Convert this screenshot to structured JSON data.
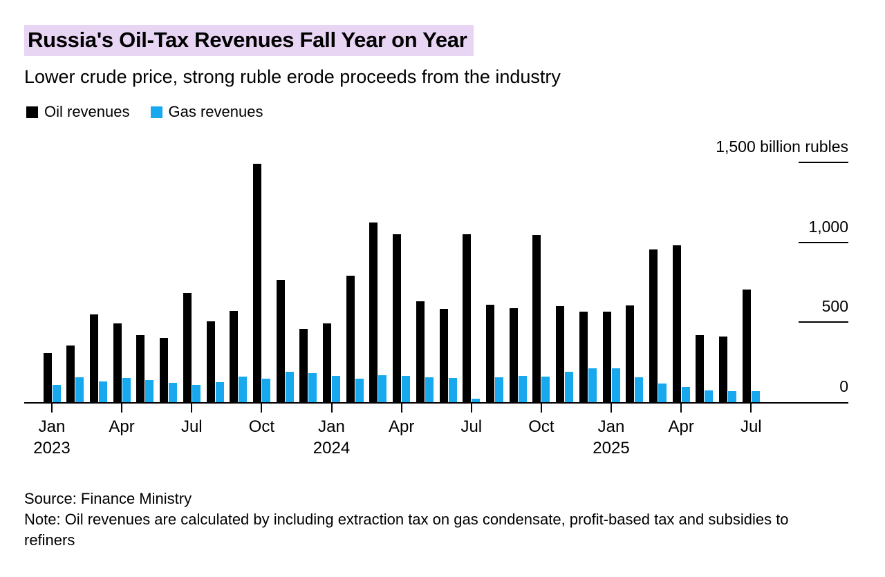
{
  "chart_data": {
    "type": "bar",
    "title": "Russia's Oil-Tax Revenues Fall Year on Year",
    "subtitle": "Lower crude price, strong ruble erode proceeds from the industry",
    "unit_label": "billion rubles",
    "legend_position": "top-left",
    "grid": "right-side tick dashes only",
    "categories": [
      "Jan 2023",
      "Feb 2023",
      "Mar 2023",
      "Apr 2023",
      "May 2023",
      "Jun 2023",
      "Jul 2023",
      "Aug 2023",
      "Sep 2023",
      "Oct 2023",
      "Nov 2023",
      "Dec 2023",
      "Jan 2024",
      "Feb 2024",
      "Mar 2024",
      "Apr 2024",
      "May 2024",
      "Jun 2024",
      "Jul 2024",
      "Aug 2024",
      "Sep 2024",
      "Oct 2024",
      "Nov 2024",
      "Dec 2024",
      "Jan 2025",
      "Feb 2025",
      "Mar 2025",
      "Apr 2025",
      "May 2025",
      "Jun 2025",
      "Jul 2025"
    ],
    "series": [
      {
        "name": "Oil revenues",
        "color": "#000000",
        "values": [
          305,
          355,
          550,
          495,
          420,
          400,
          685,
          505,
          570,
          1490,
          765,
          460,
          495,
          790,
          1125,
          1050,
          630,
          585,
          1050,
          610,
          590,
          1045,
          600,
          565,
          565,
          605,
          955,
          980,
          420,
          410,
          705
        ]
      },
      {
        "name": "Gas revenues",
        "color": "#18a8ee",
        "values": [
          110,
          155,
          130,
          150,
          140,
          120,
          110,
          125,
          160,
          145,
          190,
          180,
          165,
          145,
          170,
          165,
          155,
          150,
          20,
          155,
          165,
          160,
          190,
          210,
          210,
          155,
          115,
          95,
          75,
          70,
          70
        ]
      }
    ],
    "x_ticks": [
      {
        "index": 0,
        "label": "Jan",
        "year": "2023"
      },
      {
        "index": 3,
        "label": "Apr"
      },
      {
        "index": 6,
        "label": "Jul"
      },
      {
        "index": 9,
        "label": "Oct"
      },
      {
        "index": 12,
        "label": "Jan",
        "year": "2024"
      },
      {
        "index": 15,
        "label": "Apr"
      },
      {
        "index": 18,
        "label": "Jul"
      },
      {
        "index": 21,
        "label": "Oct"
      },
      {
        "index": 24,
        "label": "Jan",
        "year": "2025"
      },
      {
        "index": 27,
        "label": "Apr"
      },
      {
        "index": 30,
        "label": "Jul"
      }
    ],
    "y_axis": {
      "min": 0,
      "max": 1500,
      "ticks": [
        0,
        500,
        1000,
        1500
      ],
      "tick_labels": [
        "0",
        "500",
        "1,000",
        "1,500 billion rubles"
      ]
    }
  },
  "colors": {
    "title_highlight": "#e7d5f3",
    "oil": "#000000",
    "gas": "#18a8ee",
    "axis": "#000000"
  },
  "footer": {
    "source": "Source: Finance Ministry",
    "note": "Note: Oil revenues are calculated by including extraction tax on gas condensate, profit-based tax and subsidies to refiners"
  }
}
